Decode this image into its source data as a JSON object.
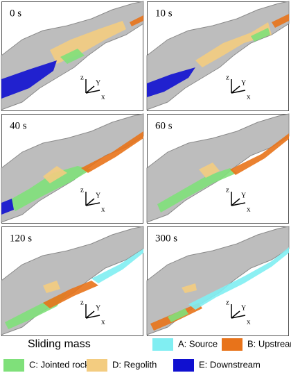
{
  "panels": [
    {
      "time": "0 s",
      "axes": {
        "z": "z",
        "y": "Y",
        "x": "x"
      }
    },
    {
      "time": "10 s",
      "axes": {
        "z": "z",
        "y": "Y",
        "x": "x"
      }
    },
    {
      "time": "40 s",
      "axes": {
        "z": "z",
        "y": "Y",
        "x": "x"
      }
    },
    {
      "time": "60 s",
      "axes": {
        "z": "z",
        "y": "Y",
        "x": "x"
      }
    },
    {
      "time": "120 s",
      "axes": {
        "z": "z",
        "y": "Y",
        "x": "x"
      }
    },
    {
      "time": "300 s",
      "axes": {
        "z": "z",
        "y": "Y",
        "x": "x"
      }
    }
  ],
  "legend": {
    "title": "Sliding mass",
    "items": [
      {
        "label": "A: Source",
        "color": "#80eef2"
      },
      {
        "label": "B: Upstream",
        "color": "#e8731a"
      },
      {
        "label": "C: Jointed rock",
        "color": "#7fe07a"
      },
      {
        "label": "D: Regolith",
        "color": "#f3cc80"
      },
      {
        "label": "E: Downstream",
        "color": "#1010d0"
      }
    ]
  }
}
